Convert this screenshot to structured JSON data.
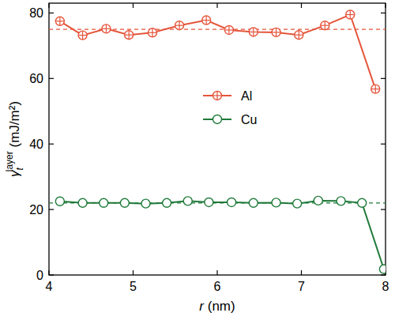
{
  "chart_data": {
    "type": "line",
    "x_label": {
      "symbol": "r",
      "unit": "(nm)"
    },
    "y_label": {
      "symbol": "γ",
      "subscript": "t",
      "superscript": "layer",
      "unit": "(mJ/m²)"
    },
    "xlim": [
      4,
      8
    ],
    "xticks": [
      4,
      5,
      6,
      7,
      8
    ],
    "ylim": [
      0,
      83
    ],
    "yticks": [
      0,
      20,
      40,
      60,
      80
    ],
    "grid": false,
    "legend": "center",
    "series": [
      {
        "name": "Al",
        "color": "#e5553b",
        "marker": "circle-plus",
        "line_style": "solid",
        "x": [
          4.13,
          4.4,
          4.68,
          4.95,
          5.23,
          5.55,
          5.87,
          6.14,
          6.43,
          6.7,
          6.97,
          7.28,
          7.58,
          7.88
        ],
        "values": [
          77.5,
          73.2,
          75.2,
          73.3,
          74.0,
          76.2,
          77.8,
          74.8,
          74.2,
          74.1,
          73.3,
          76.2,
          79.5,
          56.8
        ]
      },
      {
        "name": "Cu",
        "color": "#1f7a3a",
        "marker": "circle-open",
        "line_style": "solid",
        "x": [
          4.13,
          4.4,
          4.65,
          4.9,
          5.15,
          5.4,
          5.65,
          5.9,
          6.17,
          6.43,
          6.7,
          6.95,
          7.2,
          7.47,
          7.72,
          7.98
        ],
        "values": [
          22.5,
          22.0,
          22.0,
          22.0,
          21.8,
          22.0,
          22.6,
          22.2,
          22.2,
          22.0,
          22.1,
          21.8,
          22.7,
          22.6,
          22.0,
          1.8
        ]
      },
      {
        "color": "#e5553b",
        "marker": "none",
        "line_style": "dashed",
        "x": [
          4,
          8
        ],
        "values": [
          75,
          75
        ]
      },
      {
        "color": "#1f7a3a",
        "marker": "none",
        "line_style": "dashed",
        "x": [
          4,
          8
        ],
        "values": [
          22,
          22
        ]
      }
    ]
  }
}
